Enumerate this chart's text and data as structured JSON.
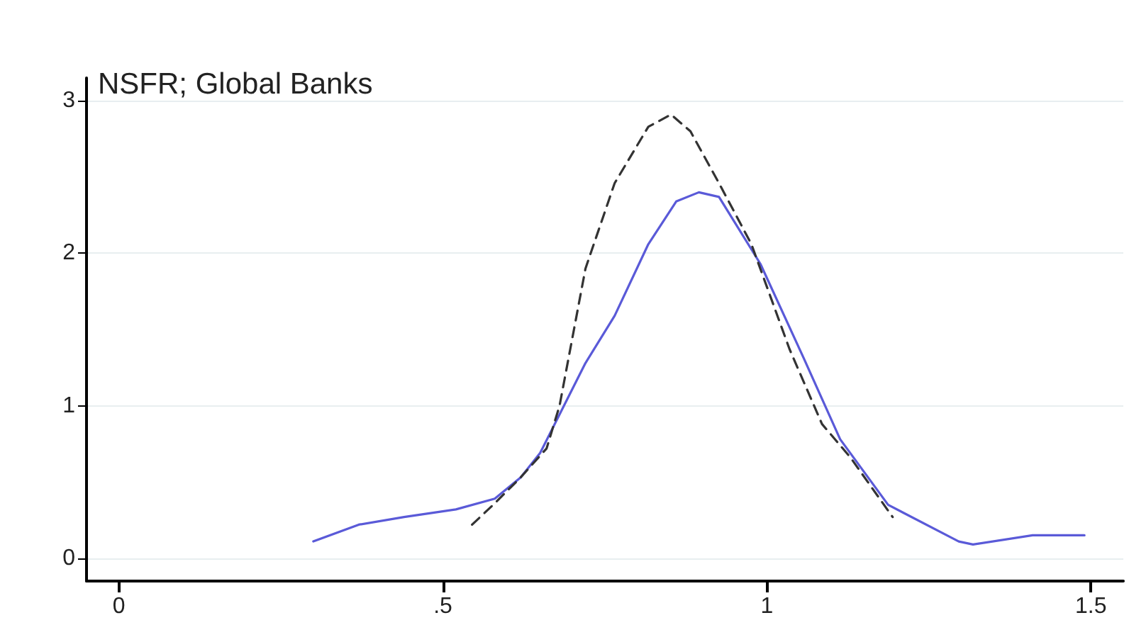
{
  "chart_data": {
    "type": "line",
    "title": "NSFR; Global Banks",
    "xlim": [
      -0.05,
      1.55
    ],
    "xticks": [
      0,
      {
        "value": 0.5,
        "label": ".5"
      },
      1,
      1.5
    ],
    "ylim": [
      -0.15,
      3.15
    ],
    "yticks": [
      0,
      1,
      2,
      3
    ],
    "grid": "y",
    "marker": "none",
    "series": [
      {
        "color": "#5a5ad8",
        "line_style": "solid",
        "x": [
          0.3,
          0.37,
          0.44,
          0.52,
          0.58,
          0.62,
          0.65,
          0.72,
          0.765,
          0.817,
          0.86,
          0.895,
          0.926,
          0.99,
          1.057,
          1.113,
          1.187,
          1.296,
          1.318,
          1.41,
          1.49
        ],
        "values": [
          0.11,
          0.22,
          0.27,
          0.32,
          0.39,
          0.53,
          0.69,
          1.28,
          1.59,
          2.06,
          2.34,
          2.4,
          2.37,
          1.93,
          1.31,
          0.78,
          0.35,
          0.11,
          0.09,
          0.15,
          0.15
        ]
      },
      {
        "color": "#333333",
        "line_style": "dashed",
        "x": [
          0.545,
          0.58,
          0.62,
          0.66,
          0.68,
          0.72,
          0.765,
          0.817,
          0.852,
          0.882,
          0.926,
          0.976,
          1.035,
          1.085,
          1.129,
          1.194
        ],
        "values": [
          0.22,
          0.36,
          0.53,
          0.72,
          1.0,
          1.9,
          2.46,
          2.83,
          2.91,
          2.8,
          2.46,
          2.06,
          1.37,
          0.88,
          0.66,
          0.27
        ]
      }
    ]
  }
}
